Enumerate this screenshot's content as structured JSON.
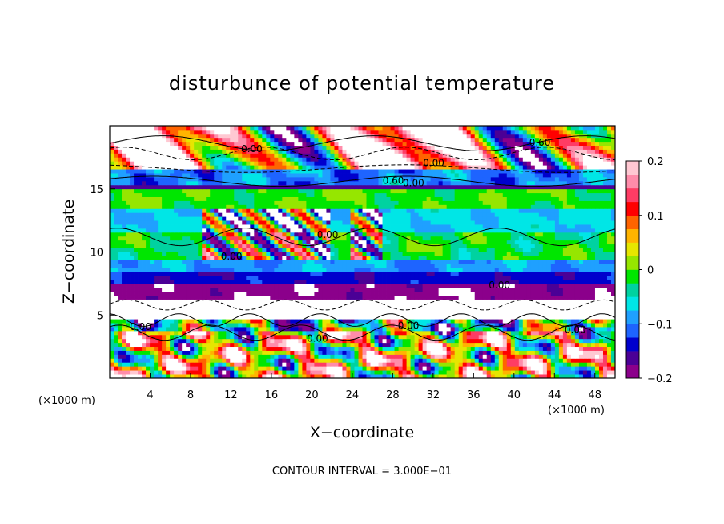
{
  "chart_data": {
    "type": "heatmap",
    "title": "disturbunce of potential temperature",
    "xlabel": "X−coordinate",
    "ylabel": "Z−coordinate",
    "x_unit": "(×1000 m)",
    "x_unit_right": "(×1000 m)",
    "xlim": [
      0,
      50
    ],
    "ylim": [
      0,
      20
    ],
    "x_ticks": [
      4,
      8,
      12,
      16,
      20,
      24,
      28,
      32,
      36,
      40,
      44,
      48
    ],
    "y_ticks": [
      5,
      10,
      15
    ],
    "colorbar": {
      "min": -0.2,
      "max": 0.2,
      "tick_values": [
        0.2,
        0.1,
        0,
        -0.1,
        -0.2
      ],
      "tick_labels": [
        "0.2",
        "0.1",
        "0",
        "−0.1",
        "−0.2"
      ]
    },
    "contour_interval_label": "CONTOUR INTERVAL = 3.000E−01",
    "contour_labels": [
      {
        "text": "0.00",
        "x": 13,
        "z": 17.9
      },
      {
        "text": "0.60",
        "x": 41.5,
        "z": 18.4
      },
      {
        "text": "0.00",
        "x": 31,
        "z": 16.8
      },
      {
        "text": "0.60",
        "x": 27,
        "z": 15.4
      },
      {
        "text": "0.00",
        "x": 29,
        "z": 15.2
      },
      {
        "text": "0.00",
        "x": 20.5,
        "z": 11.1
      },
      {
        "text": "0.00",
        "x": 11,
        "z": 9.4
      },
      {
        "text": "0.00",
        "x": 37.5,
        "z": 7.1
      },
      {
        "text": "0.00",
        "x": 2,
        "z": 3.8
      },
      {
        "text": "0.00",
        "x": 19.5,
        "z": 2.9
      },
      {
        "text": "0.00",
        "x": 28.5,
        "z": 3.9
      },
      {
        "text": "0.00",
        "x": 45,
        "z": 3.6
      }
    ],
    "bands": [
      {
        "z0": 0,
        "z1": 3.8,
        "value": 0.05,
        "var": 0.25
      },
      {
        "z0": 3.8,
        "z1": 4.6,
        "value": -0.05,
        "var": 0.2
      },
      {
        "z0": 4.6,
        "z1": 6.3,
        "value": 0.35,
        "var": 0.0
      },
      {
        "z0": 6.3,
        "z1": 7.6,
        "value": -0.19,
        "var": 0.02
      },
      {
        "z0": 7.6,
        "z1": 8.5,
        "value": -0.14,
        "var": 0.02
      },
      {
        "z0": 8.5,
        "z1": 9.5,
        "value": -0.09,
        "var": 0.03
      },
      {
        "z0": 9.5,
        "z1": 11.5,
        "value": -0.02,
        "var": 0.04
      },
      {
        "z0": 11.5,
        "z1": 13.3,
        "value": -0.07,
        "var": 0.02
      },
      {
        "z0": 13.3,
        "z1": 15.0,
        "value": -0.01,
        "var": 0.03
      },
      {
        "z0": 15.0,
        "z1": 15.3,
        "value": -0.17,
        "var": 0.0
      },
      {
        "z0": 15.3,
        "z1": 16.5,
        "value": -0.1,
        "var": 0.05
      },
      {
        "z0": 16.5,
        "z1": 20,
        "value": 0.3,
        "var": 0.0
      }
    ]
  }
}
